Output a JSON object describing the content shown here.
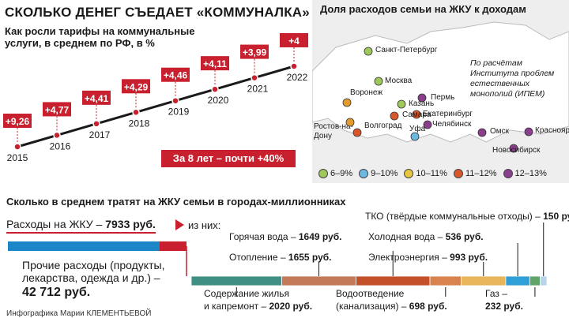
{
  "header": {
    "title": "СКОЛЬКО ДЕНЕГ СЪЕДАЕТ «КОММУНАЛКА»"
  },
  "colors": {
    "red": "#c8202e",
    "line": "#1a1a1a",
    "map_bg": "#eeeeee",
    "bar_blue": "#1a86c8"
  },
  "chart_data": [
    {
      "type": "line",
      "title": "Как росли тарифы на коммунальные услуги, в среднем по РФ, в %",
      "x": [
        "2015",
        "2016",
        "2017",
        "2018",
        "2019",
        "2020",
        "2021",
        "2022"
      ],
      "series": [
        {
          "values": [
            9.26,
            4.77,
            4.41,
            4.29,
            4.46,
            4.11,
            3.99,
            4
          ]
        }
      ],
      "value_labels": [
        "+9,26",
        "+4,77",
        "+4,41",
        "+4,29",
        "+4,46",
        "+4,11",
        "+3,99",
        "+4"
      ],
      "annotation": "За 8 лет – почти +40%"
    },
    {
      "type": "bar",
      "title": "Сколько в среднем тратят на ЖКУ семьи в городах-миллионниках",
      "categories": [
        "Содержание жилья и капремонт",
        "Горячая вода",
        "Отопление",
        "Водоотведение (канализация)",
        "Холодная вода",
        "Электроэнергия",
        "Газ",
        "ТКО (твёрдые коммунальные отходы)"
      ],
      "values": [
        2020,
        1649,
        1655,
        698,
        536,
        993,
        232,
        150
      ],
      "total_label": "Расходы на ЖКУ – ",
      "total_value": "7933 руб.",
      "total_suffix": "из них:",
      "other_label": "Прочие расходы (продукты, лекарства, одежда и др.) –",
      "other_value": "42 712 руб.",
      "unit": "руб."
    }
  ],
  "map": {
    "title": "Доля расходов семьи на ЖКУ к доходам",
    "note": "По расчётам Института проблем естественных монополий (ИПЕМ)",
    "cities": [
      {
        "name": "Санкт-Петербург",
        "color": "#9ec85a"
      },
      {
        "name": "Москва",
        "color": "#9ec85a"
      },
      {
        "name": "Пермь",
        "color": "#8b3e8e"
      },
      {
        "name": "Воронеж",
        "color": "#e39b2d"
      },
      {
        "name": "Казань",
        "color": "#9ec85a"
      },
      {
        "name": "Екатеринбург",
        "color": "#d9582b"
      },
      {
        "name": "Самара",
        "color": "#d9582b"
      },
      {
        "name": "Челябинск",
        "color": "#8b3e8e"
      },
      {
        "name": "Ростов-на-Дону",
        "color": "#e39b2d"
      },
      {
        "name": "Волгоград",
        "color": "#d9582b"
      },
      {
        "name": "Уфа",
        "color": "#6bb8e0"
      },
      {
        "name": "Омск",
        "color": "#8b3e8e"
      },
      {
        "name": "Новосибирск",
        "color": "#8b3e8e"
      },
      {
        "name": "Красноярск",
        "color": "#8b3e8e"
      }
    ],
    "legend": [
      {
        "label": "6–9%",
        "color": "#9ec85a"
      },
      {
        "label": "9–10%",
        "color": "#6bb8e0"
      },
      {
        "label": "10–11%",
        "color": "#e8c640"
      },
      {
        "label": "11–12%",
        "color": "#d9582b"
      },
      {
        "label": "12–13%",
        "color": "#8b3e8e"
      }
    ]
  },
  "credit": "Инфографика Марии КЛЕМЕНТЬЕВОЙ"
}
